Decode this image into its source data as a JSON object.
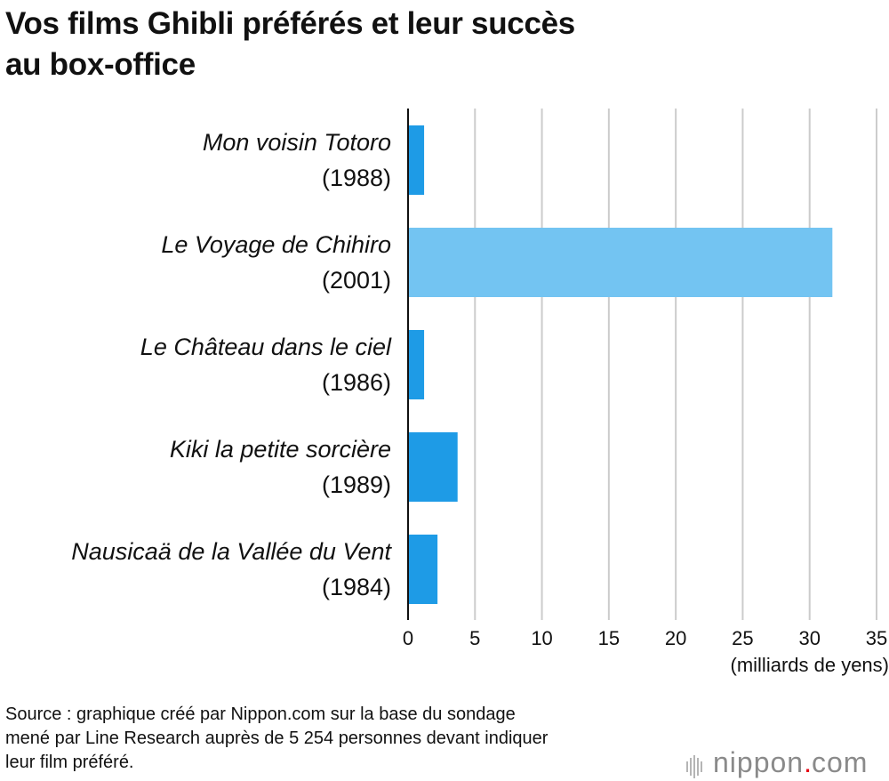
{
  "title": {
    "line1": "Vos films Ghibli préférés et leur succès",
    "line2": "au box-office"
  },
  "chart_data": {
    "type": "bar",
    "orientation": "horizontal",
    "title": "Vos films Ghibli préférés et leur succès au box-office",
    "categories": [
      {
        "name": "Mon voisin Totoro",
        "year": "(1988)"
      },
      {
        "name": "Le Voyage de Chihiro",
        "year": "(2001)"
      },
      {
        "name": "Le Château dans le ciel",
        "year": "(1986)"
      },
      {
        "name": "Kiki la petite sorcière",
        "year": "(1989)"
      },
      {
        "name": "Nausicaä de la Vallée du Vent",
        "year": "(1984)"
      }
    ],
    "values": [
      1.2,
      31.7,
      1.2,
      3.7,
      2.2
    ],
    "highlight_index": 1,
    "xlabel": "(milliards de yens)",
    "xlim": [
      0,
      35
    ],
    "xticks": [
      "0",
      "5",
      "10",
      "15",
      "20",
      "25",
      "30",
      "35"
    ],
    "grid": true,
    "colors": {
      "bar": "#1e9be6",
      "highlight": "#73c4f2",
      "grid": "#cccccc",
      "axis": "#111111"
    }
  },
  "source": {
    "line1": "Source : graphique créé par Nippon.com sur la base du sondage",
    "line2": "mené par Line Research auprès de 5 254 personnes devant indiquer",
    "line3": "leur film préféré."
  },
  "logo": {
    "word": "nippon",
    "dot": ".",
    "suffix": "com"
  }
}
